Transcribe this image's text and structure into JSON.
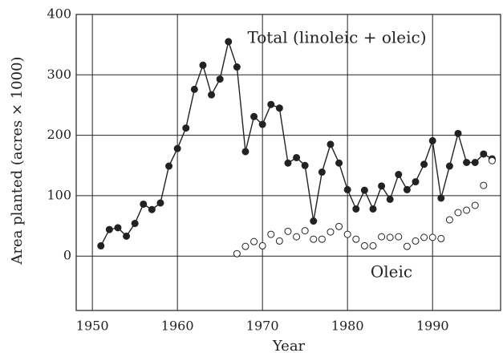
{
  "chart_data": {
    "type": "line",
    "xlabel": "Year",
    "ylabel": "Area planted (acres × 1000)",
    "annotations": [
      "Total (linoleic + oleic)",
      "Oleic"
    ],
    "xlim": [
      1948.1,
      1998
    ],
    "ylim": [
      -90,
      400
    ],
    "xticks": [
      1950,
      1960,
      1970,
      1980,
      1990
    ],
    "yticks": [
      0,
      100,
      200,
      300,
      400
    ],
    "grid": true,
    "series": [
      {
        "name": "Total (linoleic + oleic)",
        "color": "#222222",
        "marker": "filled",
        "line": true,
        "x": [
          1951,
          1952,
          1953,
          1954,
          1955,
          1956,
          1957,
          1958,
          1959,
          1960,
          1961,
          1962,
          1963,
          1964,
          1965,
          1966,
          1967,
          1968,
          1969,
          1970,
          1971,
          1972,
          1973,
          1974,
          1975,
          1976,
          1977,
          1978,
          1979,
          1980,
          1981,
          1982,
          1983,
          1984,
          1985,
          1986,
          1987,
          1988,
          1989,
          1990,
          1991,
          1992,
          1993,
          1994,
          1995,
          1996,
          1997
        ],
        "values": [
          17,
          44,
          47,
          33,
          54,
          86,
          77,
          88,
          149,
          178,
          212,
          276,
          316,
          267,
          293,
          355,
          313,
          173,
          231,
          218,
          251,
          245,
          154,
          163,
          150,
          58,
          139,
          185,
          154,
          110,
          78,
          109,
          78,
          116,
          94,
          135,
          110,
          123,
          152,
          191,
          96,
          149,
          203,
          155,
          155,
          169,
          161
        ]
      },
      {
        "name": "Oleic",
        "color": "#222222",
        "marker": "open",
        "line": false,
        "x": [
          1967,
          1968,
          1969,
          1970,
          1971,
          1972,
          1973,
          1974,
          1975,
          1976,
          1977,
          1978,
          1979,
          1980,
          1981,
          1982,
          1983,
          1984,
          1985,
          1986,
          1987,
          1988,
          1989,
          1990,
          1991,
          1992,
          1993,
          1994,
          1995,
          1996,
          1997
        ],
        "values": [
          4,
          16,
          24,
          17,
          36,
          25,
          41,
          32,
          42,
          28,
          28,
          40,
          49,
          36,
          28,
          17,
          17,
          32,
          31,
          32,
          16,
          25,
          31,
          31,
          29,
          60,
          72,
          76,
          84,
          117,
          158
        ]
      }
    ]
  }
}
